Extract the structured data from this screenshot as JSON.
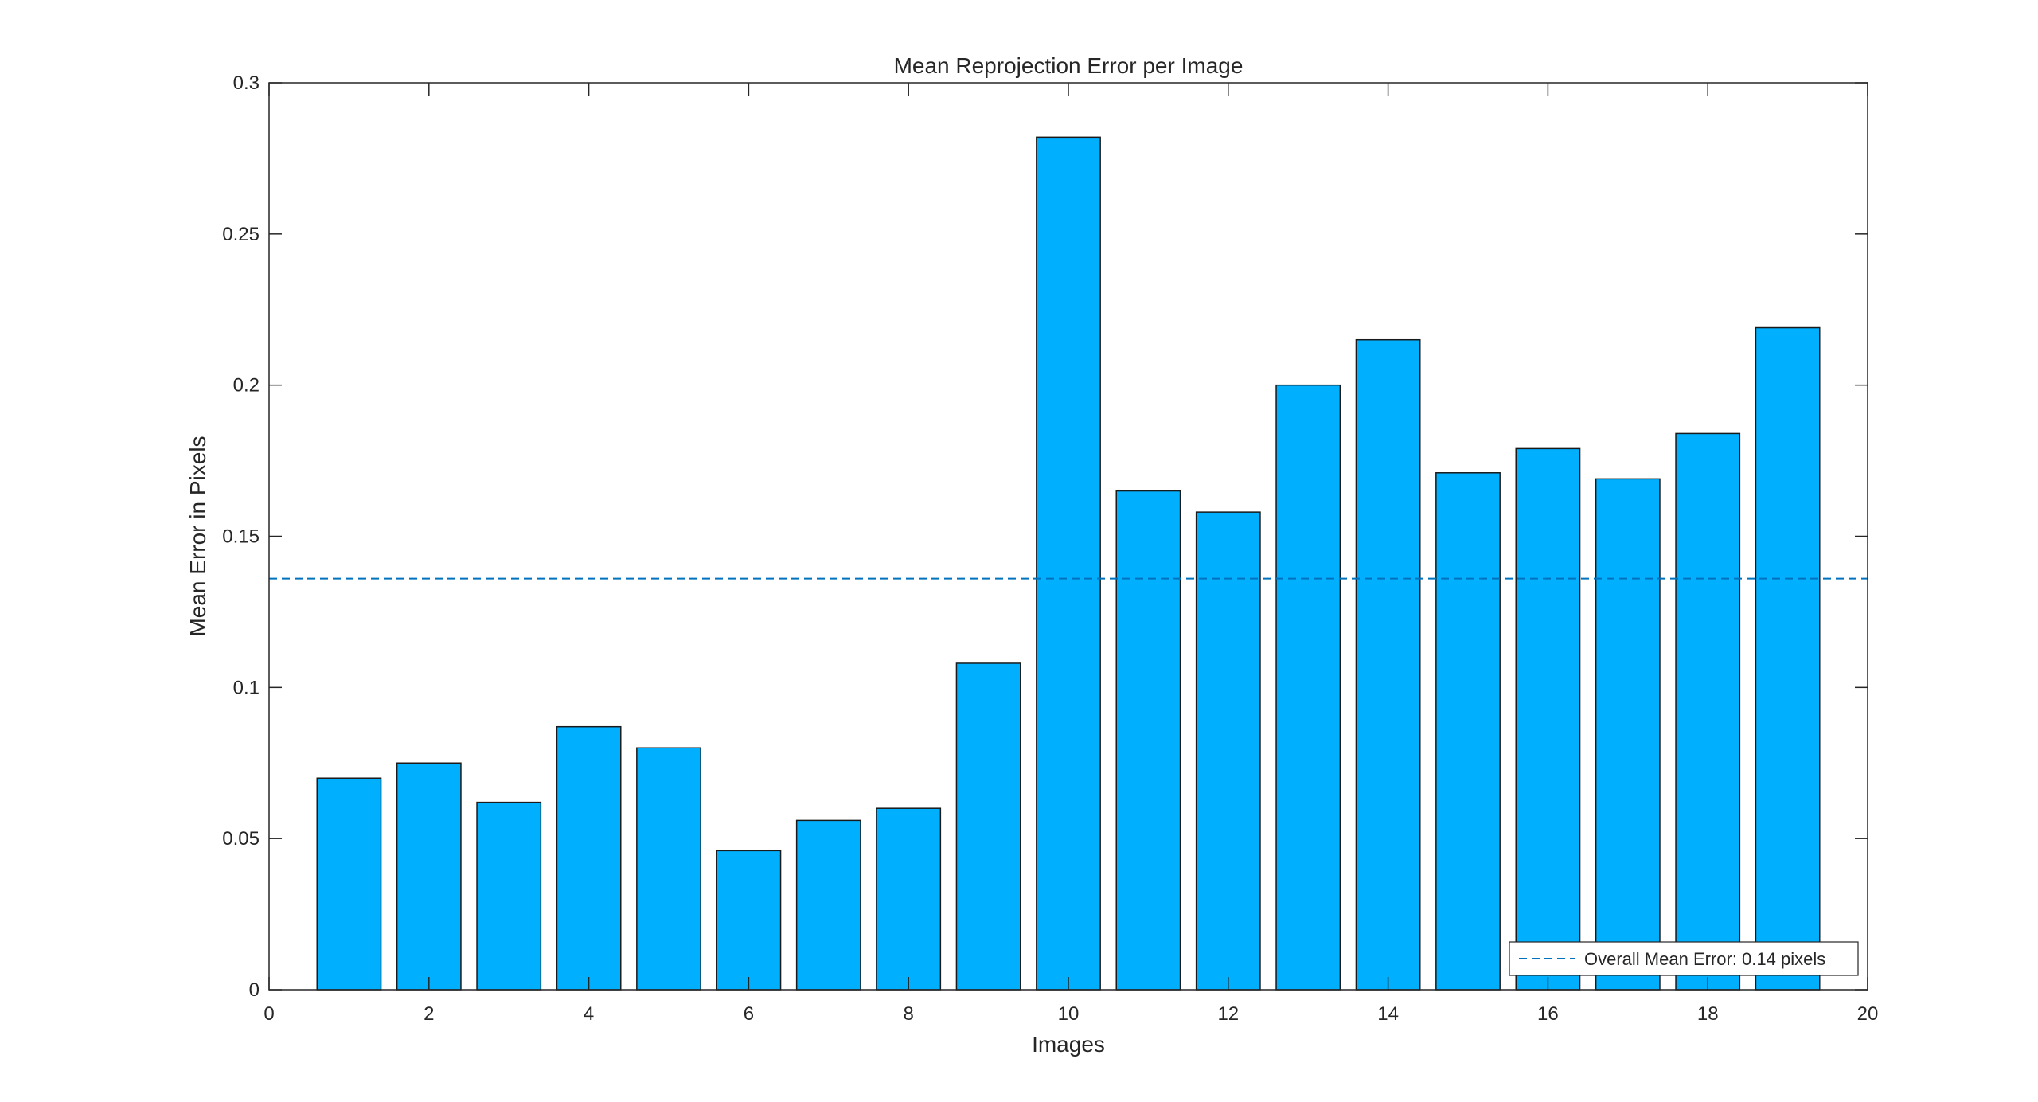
{
  "chart_data": {
    "type": "bar",
    "title": "Mean Reprojection Error per Image",
    "xlabel": "Images",
    "ylabel": "Mean Error in Pixels",
    "x": [
      1,
      2,
      3,
      4,
      5,
      6,
      7,
      8,
      9,
      10,
      11,
      12,
      13,
      14,
      15,
      16,
      17,
      18,
      19
    ],
    "values": [
      0.07,
      0.075,
      0.062,
      0.087,
      0.08,
      0.046,
      0.056,
      0.06,
      0.108,
      0.282,
      0.165,
      0.158,
      0.2,
      0.215,
      0.171,
      0.179,
      0.169,
      0.184,
      0.219
    ],
    "xlim": [
      0,
      20
    ],
    "ylim": [
      0,
      0.3
    ],
    "xticks": [
      0,
      2,
      4,
      6,
      8,
      10,
      12,
      14,
      16,
      18,
      20
    ],
    "xtick_labels": [
      "0",
      "2",
      "4",
      "6",
      "8",
      "10",
      "12",
      "14",
      "16",
      "18",
      "20"
    ],
    "yticks": [
      0,
      0.05,
      0.1,
      0.15,
      0.2,
      0.25,
      0.3
    ],
    "ytick_labels": [
      "0",
      "0.05",
      "0.1",
      "0.15",
      "0.2",
      "0.25",
      "0.3"
    ],
    "mean_line": {
      "value": 0.136,
      "label": "Overall Mean Error: 0.14 pixels",
      "style": "dashed",
      "color": "#0072BD"
    },
    "bar_color": "#00B0FF",
    "bar_edge_color": "#1a1a1a",
    "grid": false,
    "legend_position": "bottom-right"
  }
}
